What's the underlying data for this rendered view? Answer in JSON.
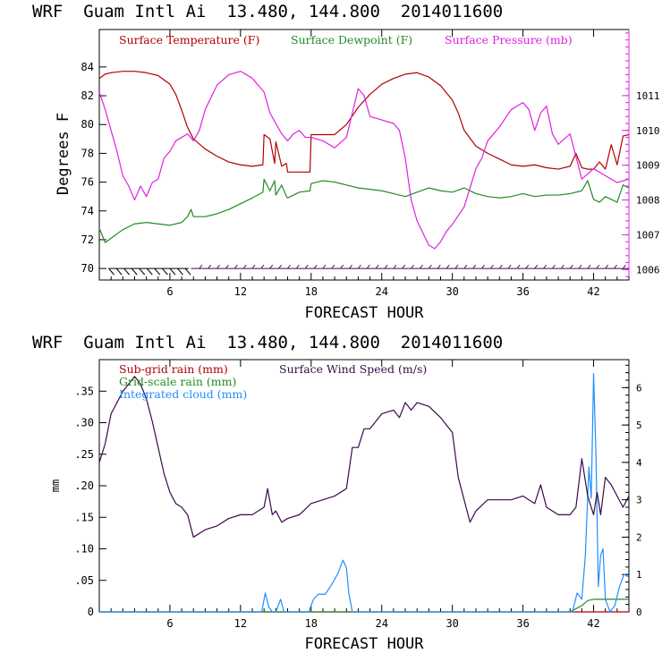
{
  "chart_data": [
    {
      "type": "line",
      "header": "WRF  Guam Intl Ai  13.480, 144.800  2014011600",
      "xlabel": "FORECAST HOUR",
      "ylabel": "Degrees F",
      "xlim": [
        0,
        45
      ],
      "ylim": [
        69.2,
        86.6
      ],
      "y2lim": [
        1005.7,
        1012.9
      ],
      "xticks": [
        6,
        12,
        18,
        24,
        30,
        36,
        42
      ],
      "yticks": [
        70,
        72,
        74,
        76,
        78,
        80,
        82,
        84
      ],
      "y2ticks": [
        1006,
        1007,
        1008,
        1009,
        1010,
        1011
      ],
      "series": [
        {
          "name": "Surface Temperature (F)",
          "axis": "left",
          "color": "#b00000",
          "x": [
            0,
            0.5,
            1,
            2,
            3,
            4,
            5,
            6,
            6.5,
            7,
            7.5,
            8,
            9,
            10,
            11,
            12,
            13,
            13.9,
            14,
            14.5,
            14.9,
            15,
            15.5,
            15.9,
            16,
            17,
            17.9,
            18,
            19,
            20,
            21,
            22,
            23,
            24,
            25,
            26,
            27,
            28,
            29,
            30,
            30.5,
            31,
            32,
            33,
            34,
            35,
            36,
            37,
            38,
            39,
            40,
            40.5,
            41,
            41.5,
            42,
            42.5,
            43,
            43.5,
            44,
            44.5,
            45
          ],
          "values": [
            83.2,
            83.5,
            83.6,
            83.7,
            83.7,
            83.6,
            83.4,
            82.8,
            82.1,
            81.0,
            79.8,
            79.0,
            78.3,
            77.8,
            77.4,
            77.2,
            77.1,
            77.2,
            79.3,
            79.0,
            77.3,
            78.8,
            77.1,
            77.3,
            76.7,
            76.7,
            76.7,
            79.3,
            79.3,
            79.3,
            80.0,
            81.2,
            82.1,
            82.8,
            83.2,
            83.5,
            83.6,
            83.3,
            82.7,
            81.7,
            80.8,
            79.6,
            78.5,
            78.0,
            77.6,
            77.2,
            77.1,
            77.2,
            77.0,
            76.9,
            77.1,
            78.0,
            77.0,
            76.9,
            76.9,
            77.4,
            76.9,
            78.6,
            77.2,
            79.2,
            79.3
          ]
        },
        {
          "name": "Surface Dewpoint (F)",
          "axis": "left",
          "color": "#228b22",
          "x": [
            0,
            0.5,
            1,
            2,
            3,
            4,
            5,
            6,
            7,
            7.5,
            7.8,
            8,
            9,
            10,
            11,
            12,
            13,
            13.9,
            14,
            14.5,
            14.9,
            15,
            15.5,
            15.9,
            16,
            17,
            17.9,
            18,
            19,
            20,
            21,
            22,
            23,
            24,
            25,
            26,
            27,
            28,
            29,
            30,
            31,
            32,
            33,
            34,
            35,
            36,
            37,
            38,
            39,
            40,
            41,
            41.5,
            42,
            42.5,
            43,
            44,
            44.5,
            45
          ],
          "values": [
            72.8,
            71.8,
            72.1,
            72.7,
            73.1,
            73.2,
            73.1,
            73.0,
            73.2,
            73.6,
            74.1,
            73.6,
            73.6,
            73.8,
            74.1,
            74.5,
            74.9,
            75.3,
            76.2,
            75.4,
            76.1,
            75.1,
            75.8,
            75.0,
            74.9,
            75.3,
            75.4,
            75.9,
            76.1,
            76.0,
            75.8,
            75.6,
            75.5,
            75.4,
            75.2,
            75.0,
            75.3,
            75.6,
            75.4,
            75.3,
            75.6,
            75.2,
            75.0,
            74.9,
            75.0,
            75.2,
            75.0,
            75.1,
            75.1,
            75.2,
            75.4,
            76.1,
            74.8,
            74.6,
            75.0,
            74.6,
            75.8,
            75.6
          ]
        },
        {
          "name": "Surface Pressure (mb)",
          "axis": "right",
          "color": "#e020e0",
          "x": [
            0,
            0.5,
            1,
            1.5,
            2,
            2.5,
            3,
            3.5,
            4,
            4.5,
            5,
            5.5,
            6,
            6.5,
            7,
            7.5,
            8,
            8.5,
            9,
            10,
            11,
            12,
            13,
            14,
            14.5,
            15,
            15.5,
            16,
            16.5,
            17,
            17.5,
            18,
            19,
            20,
            21,
            21.5,
            22,
            22.5,
            23,
            24,
            25,
            25.5,
            26,
            26.5,
            27,
            28,
            28.5,
            29,
            29.5,
            30,
            31,
            32,
            32.5,
            33,
            34,
            35,
            36,
            36.5,
            37,
            37.5,
            38,
            38.5,
            39,
            40,
            41,
            42,
            43,
            44,
            45
          ],
          "values": [
            1011.1,
            1010.6,
            1010.0,
            1009.4,
            1008.7,
            1008.4,
            1008.0,
            1008.4,
            1008.1,
            1008.5,
            1008.6,
            1009.2,
            1009.4,
            1009.7,
            1009.8,
            1009.9,
            1009.7,
            1010.0,
            1010.6,
            1011.3,
            1011.6,
            1011.7,
            1011.5,
            1011.1,
            1010.5,
            1010.2,
            1009.9,
            1009.7,
            1009.9,
            1010.0,
            1009.8,
            1009.8,
            1009.7,
            1009.5,
            1009.8,
            1010.5,
            1011.2,
            1011.0,
            1010.4,
            1010.3,
            1010.2,
            1010.0,
            1009.2,
            1008.0,
            1007.4,
            1006.7,
            1006.6,
            1006.8,
            1007.1,
            1007.3,
            1007.8,
            1008.9,
            1009.2,
            1009.7,
            1010.1,
            1010.6,
            1010.8,
            1010.6,
            1010.0,
            1010.5,
            1010.7,
            1009.9,
            1009.6,
            1009.9,
            1008.6,
            1008.9,
            1008.7,
            1008.5,
            1008.6
          ]
        }
      ],
      "wind_barbs": "Row of wind barbs along y = 70"
    },
    {
      "type": "line",
      "header": "WRF  Guam Intl Ai  13.480, 144.800  2014011600",
      "xlabel": "FORECAST HOUR",
      "ylabel": "mm",
      "xlim": [
        0,
        45
      ],
      "ylim": [
        0,
        0.4
      ],
      "y2lim": [
        0,
        6.75
      ],
      "xticks": [
        6,
        12,
        18,
        24,
        30,
        36,
        42
      ],
      "yticks": [
        0,
        0.05,
        0.1,
        0.15,
        0.2,
        0.25,
        0.3,
        0.35
      ],
      "ytick_labels": [
        "0",
        ".05",
        ".10",
        ".15",
        ".20",
        ".25",
        ".30",
        ".35"
      ],
      "y2ticks": [
        0,
        1,
        2,
        3,
        4,
        5,
        6
      ],
      "series": [
        {
          "name": "Sub-grid rain (mm)",
          "axis": "left",
          "color": "#b00000",
          "x": [
            0,
            45
          ],
          "values": [
            0,
            0
          ]
        },
        {
          "name": "Grid-scale rain (mm)",
          "axis": "left",
          "color": "#228b22",
          "x": [
            0,
            40,
            41,
            41.5,
            42,
            43,
            45
          ],
          "values": [
            0,
            0,
            0.01,
            0.018,
            0.02,
            0.02,
            0.02
          ]
        },
        {
          "name": "Integrated cloud (mm)",
          "axis": "left",
          "color": "#1e90ff",
          "x": [
            0,
            13.8,
            14.1,
            14.4,
            14.7,
            15.0,
            15.4,
            15.7,
            16,
            17.8,
            18.2,
            18.6,
            19.2,
            19.8,
            20.3,
            20.7,
            21.0,
            21.2,
            21.5,
            40.2,
            40.6,
            41.0,
            41.3,
            41.6,
            41.8,
            42.0,
            42.2,
            42.4,
            42.6,
            42.8,
            43.0,
            43.4,
            43.8,
            44.2,
            44.6,
            45
          ],
          "values": [
            0,
            0,
            0.03,
            0.008,
            0,
            0,
            0.02,
            0,
            0,
            0,
            0.02,
            0.028,
            0.028,
            0.045,
            0.062,
            0.082,
            0.07,
            0.03,
            0,
            0,
            0.03,
            0.02,
            0.09,
            0.23,
            0.18,
            0.378,
            0.25,
            0.04,
            0.09,
            0.1,
            0.02,
            0,
            0.01,
            0.04,
            0.06,
            0.055
          ]
        },
        {
          "name": "Surface Wind Speed (m/s)",
          "axis": "right",
          "color": "#3a0a4a",
          "x": [
            0,
            0.5,
            1,
            1.5,
            2,
            2.5,
            3,
            3.5,
            4,
            4.5,
            5,
            5.5,
            6,
            6.5,
            7,
            7.5,
            8,
            9,
            10,
            11,
            12,
            13,
            14,
            14.3,
            14.7,
            15,
            15.5,
            16,
            17,
            18,
            19,
            20,
            21,
            21.5,
            22,
            22.5,
            23,
            24,
            25,
            25.5,
            26,
            26.5,
            27,
            28,
            29,
            30,
            30.5,
            31,
            31.5,
            32,
            33,
            34,
            35,
            36,
            37,
            37.5,
            38,
            39,
            40,
            40.5,
            41,
            41.5,
            42,
            42.3,
            42.6,
            43,
            43.5,
            44,
            44.5,
            45
          ],
          "values": [
            4.0,
            4.5,
            5.3,
            5.6,
            5.9,
            6.1,
            6.3,
            6.1,
            5.7,
            5.1,
            4.4,
            3.7,
            3.2,
            2.9,
            2.8,
            2.6,
            2.0,
            2.2,
            2.3,
            2.5,
            2.6,
            2.6,
            2.8,
            3.3,
            2.6,
            2.7,
            2.4,
            2.5,
            2.6,
            2.9,
            3.0,
            3.1,
            3.3,
            4.4,
            4.4,
            4.9,
            4.9,
            5.3,
            5.4,
            5.2,
            5.6,
            5.4,
            5.6,
            5.5,
            5.2,
            4.8,
            3.6,
            3.0,
            2.4,
            2.7,
            3.0,
            3.0,
            3.0,
            3.1,
            2.9,
            3.4,
            2.8,
            2.6,
            2.6,
            2.8,
            4.1,
            3.1,
            2.6,
            3.2,
            2.6,
            3.6,
            3.4,
            3.1,
            2.8,
            3.1
          ]
        }
      ]
    }
  ]
}
